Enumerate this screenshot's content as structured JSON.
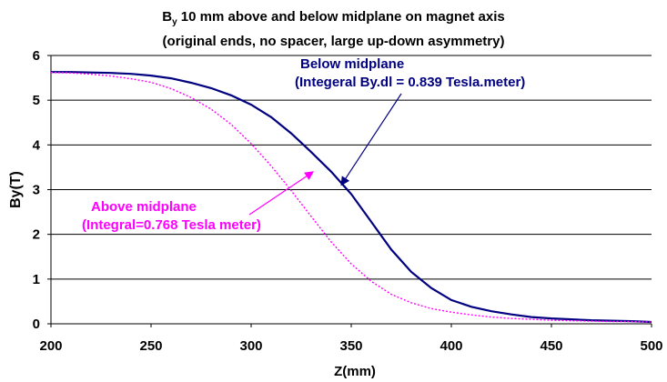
{
  "chart_data": {
    "type": "line",
    "title_prefix": "B",
    "title_sub": "y",
    "title_rest": " 10 mm above and below midplane on magnet axis",
    "subtitle": "(original ends, no spacer, large up-down asymmetry)",
    "xlabel": "Z(mm)",
    "ylabel": "By(T)",
    "xlim": [
      200,
      500
    ],
    "ylim": [
      0,
      6
    ],
    "xticks": [
      "200",
      "250",
      "300",
      "350",
      "400",
      "450",
      "500"
    ],
    "yticks": [
      "0",
      "1",
      "2",
      "3",
      "4",
      "5",
      "6"
    ],
    "grid": "horizontal",
    "series": [
      {
        "name": "Below midplane",
        "color": "#000080",
        "style": "solid",
        "x": [
          200,
          210,
          220,
          230,
          240,
          250,
          260,
          270,
          280,
          290,
          300,
          310,
          320,
          330,
          340,
          350,
          360,
          370,
          380,
          390,
          400,
          410,
          420,
          430,
          440,
          450,
          460,
          470,
          480,
          490,
          500
        ],
        "y": [
          5.63,
          5.63,
          5.62,
          5.61,
          5.59,
          5.55,
          5.49,
          5.39,
          5.27,
          5.11,
          4.9,
          4.62,
          4.26,
          3.84,
          3.4,
          2.9,
          2.28,
          1.66,
          1.16,
          0.8,
          0.53,
          0.38,
          0.28,
          0.21,
          0.15,
          0.12,
          0.1,
          0.08,
          0.07,
          0.06,
          0.04
        ]
      },
      {
        "name": "Above midplane",
        "color": "#ff00ff",
        "style": "dotted",
        "x": [
          200,
          210,
          220,
          230,
          240,
          250,
          260,
          270,
          280,
          290,
          300,
          310,
          320,
          330,
          340,
          350,
          360,
          370,
          380,
          390,
          400,
          410,
          420,
          430,
          440,
          450,
          460,
          470,
          480,
          490,
          500
        ],
        "y": [
          5.62,
          5.61,
          5.58,
          5.54,
          5.48,
          5.4,
          5.26,
          5.06,
          4.8,
          4.46,
          4.03,
          3.53,
          2.98,
          2.4,
          1.83,
          1.34,
          0.95,
          0.66,
          0.47,
          0.34,
          0.26,
          0.2,
          0.15,
          0.12,
          0.1,
          0.08,
          0.07,
          0.06,
          0.05,
          0.05,
          0.04
        ]
      }
    ],
    "annotations": [
      {
        "text": "Below midplane",
        "line2": "(Integeral By.dl = 0.839 Tesla.meter)",
        "color": "#000080",
        "arrow_to": [
          345,
          3.1
        ]
      },
      {
        "text": "Above midplane",
        "line2": "(Integral=0.768 Tesla meter)",
        "color": "#ff00ff",
        "arrow_to": [
          331,
          3.4
        ]
      }
    ]
  }
}
